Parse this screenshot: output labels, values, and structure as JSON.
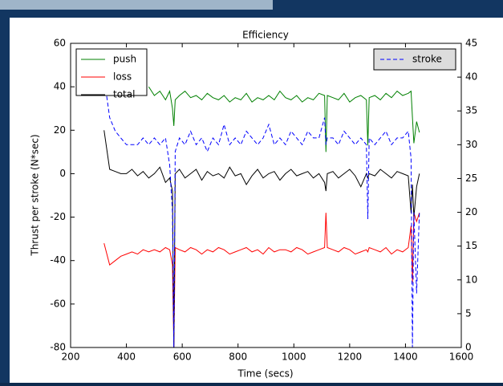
{
  "chart_data": {
    "type": "line",
    "title": "Efficiency",
    "xlabel": "Time (secs)",
    "ylabel": "Thrust per stroke (N*sec)",
    "xlim": [
      200,
      1600
    ],
    "xticks": [
      200,
      400,
      600,
      800,
      1000,
      1200,
      1400,
      1600
    ],
    "ylim": [
      -80,
      60
    ],
    "yticks": [
      -80,
      -60,
      -40,
      -20,
      0,
      20,
      40,
      60
    ],
    "y2lim": [
      0,
      45
    ],
    "y2ticks": [
      0,
      5,
      10,
      15,
      20,
      25,
      30,
      35,
      40,
      45
    ],
    "x": [
      320,
      340,
      360,
      380,
      400,
      420,
      440,
      460,
      480,
      500,
      520,
      540,
      555,
      565,
      570,
      575,
      590,
      610,
      630,
      650,
      670,
      690,
      710,
      730,
      750,
      770,
      790,
      810,
      830,
      850,
      870,
      890,
      910,
      930,
      950,
      970,
      990,
      1010,
      1030,
      1050,
      1070,
      1090,
      1110,
      1115,
      1120,
      1140,
      1160,
      1180,
      1200,
      1220,
      1240,
      1260,
      1265,
      1270,
      1290,
      1310,
      1330,
      1350,
      1370,
      1390,
      1410,
      1420,
      1425,
      1430,
      1440,
      1450
    ],
    "series": [
      {
        "name": "push",
        "color": "#008000",
        "values": [
          null,
          null,
          null,
          null,
          null,
          null,
          null,
          null,
          40,
          36,
          38,
          34,
          38,
          30,
          22,
          34,
          36,
          38,
          35,
          36,
          34,
          37,
          35,
          34,
          36,
          33,
          35,
          34,
          37,
          33,
          35,
          34,
          36,
          34,
          38,
          35,
          34,
          36,
          33,
          35,
          34,
          37,
          36,
          10,
          36,
          35,
          34,
          37,
          33,
          35,
          36,
          34,
          13,
          35,
          36,
          34,
          37,
          35,
          38,
          36,
          37,
          38,
          26,
          14,
          24,
          19
        ]
      },
      {
        "name": "loss",
        "color": "#ff0000",
        "values": [
          -32,
          -42,
          -40,
          -38,
          -37,
          -36,
          -37,
          -35,
          -36,
          -35,
          -36,
          -34,
          -35,
          -42,
          -80,
          -34,
          -35,
          -36,
          -34,
          -35,
          -37,
          -35,
          -36,
          -34,
          -35,
          -37,
          -36,
          -35,
          -34,
          -36,
          -35,
          -37,
          -34,
          -36,
          -35,
          -35,
          -36,
          -34,
          -35,
          -37,
          -36,
          -35,
          -34,
          -18,
          -34,
          -35,
          -36,
          -34,
          -35,
          -37,
          -36,
          -35,
          -36,
          -34,
          -35,
          -36,
          -34,
          -37,
          -35,
          -36,
          -34,
          -24,
          -50,
          -18,
          -22,
          -18
        ]
      },
      {
        "name": "total",
        "color": "#000000",
        "values": [
          20,
          2,
          1,
          0,
          0,
          2,
          -1,
          1,
          -2,
          0,
          3,
          -4,
          -2,
          -8,
          -80,
          0,
          2,
          -2,
          0,
          2,
          -3,
          1,
          -1,
          0,
          -2,
          3,
          -1,
          0,
          -5,
          -1,
          2,
          -2,
          0,
          1,
          -3,
          0,
          2,
          -1,
          0,
          1,
          -2,
          0,
          -4,
          -8,
          0,
          1,
          -2,
          0,
          2,
          -1,
          -6,
          0,
          -2,
          0,
          -1,
          2,
          0,
          -2,
          1,
          0,
          -1,
          -18,
          -5,
          -20,
          -6,
          0
        ]
      },
      {
        "name": "stroke",
        "color": "#0000ff",
        "axis": "y2",
        "dash": true,
        "values": [
          40,
          34,
          32,
          31,
          30,
          30,
          30,
          31,
          30,
          31,
          30,
          31,
          27,
          20,
          0,
          29,
          31,
          30,
          32,
          30,
          31,
          29,
          31,
          30,
          33,
          30,
          31,
          30,
          32,
          31,
          30,
          31,
          33,
          30,
          31,
          30,
          32,
          31,
          30,
          32,
          31,
          31,
          34,
          30,
          31,
          31,
          30,
          32,
          31,
          30,
          31,
          30,
          19,
          31,
          30,
          31,
          32,
          30,
          31,
          31,
          32,
          28,
          0,
          20,
          8,
          20
        ]
      }
    ]
  }
}
